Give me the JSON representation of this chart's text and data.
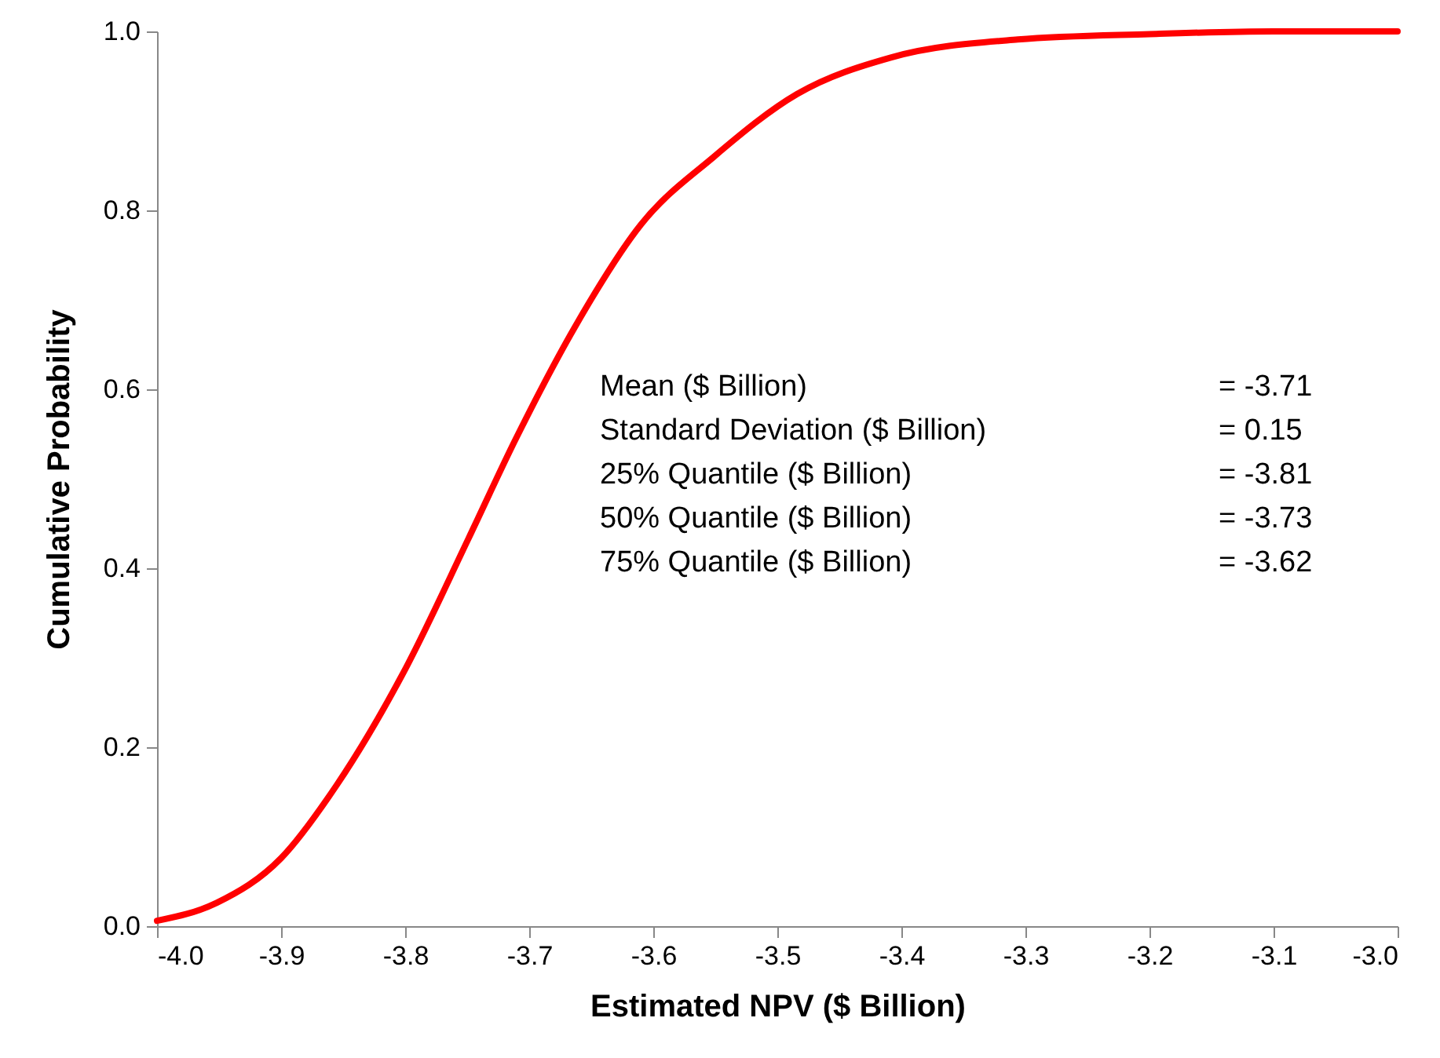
{
  "chart_data": {
    "type": "line",
    "xlabel": "Estimated NPV ($ Billion)",
    "ylabel": "Cumulative Probability",
    "x": [
      -4.0,
      -3.952,
      -3.9,
      -3.855,
      -3.8,
      -3.749,
      -3.711,
      -3.663,
      -3.61,
      -3.551,
      -3.484,
      -3.408,
      -3.306,
      -3.2,
      -3.1,
      -3.0
    ],
    "series": [
      {
        "color": "#ff0000",
        "values": [
          0.006,
          0.026,
          0.076,
          0.158,
          0.287,
          0.433,
          0.544,
          0.67,
          0.784,
          0.86,
          0.93,
          0.971,
          0.991,
          0.997,
          1.0,
          1.0
        ]
      }
    ],
    "xlim": [
      -4.0,
      -3.0
    ],
    "xticks": [
      {
        "value": -4.0,
        "label": "-4.0"
      },
      -3.9,
      -3.8,
      -3.7,
      -3.6,
      -3.5,
      -3.4,
      -3.3,
      -3.2,
      -3.1,
      {
        "value": -3.0,
        "label": "-3.0"
      }
    ],
    "ylim": [
      0,
      1
    ],
    "yticks": [
      {
        "value": 0,
        "label": "0.0"
      },
      0.2,
      0.4,
      0.6,
      0.8,
      {
        "value": 1,
        "label": "1.0"
      }
    ],
    "grid": false,
    "marker": "none",
    "line_style": "solid",
    "annotations": [
      "Mean ($ Billion) = -3.71",
      "Standard Deviation ($ Billion) =  0.15",
      "25% Quantile ($ Billion) = -3.81",
      "50% Quantile ($ Billion) = -3.73",
      "75% Quantile ($ Billion) = -3.62"
    ]
  }
}
